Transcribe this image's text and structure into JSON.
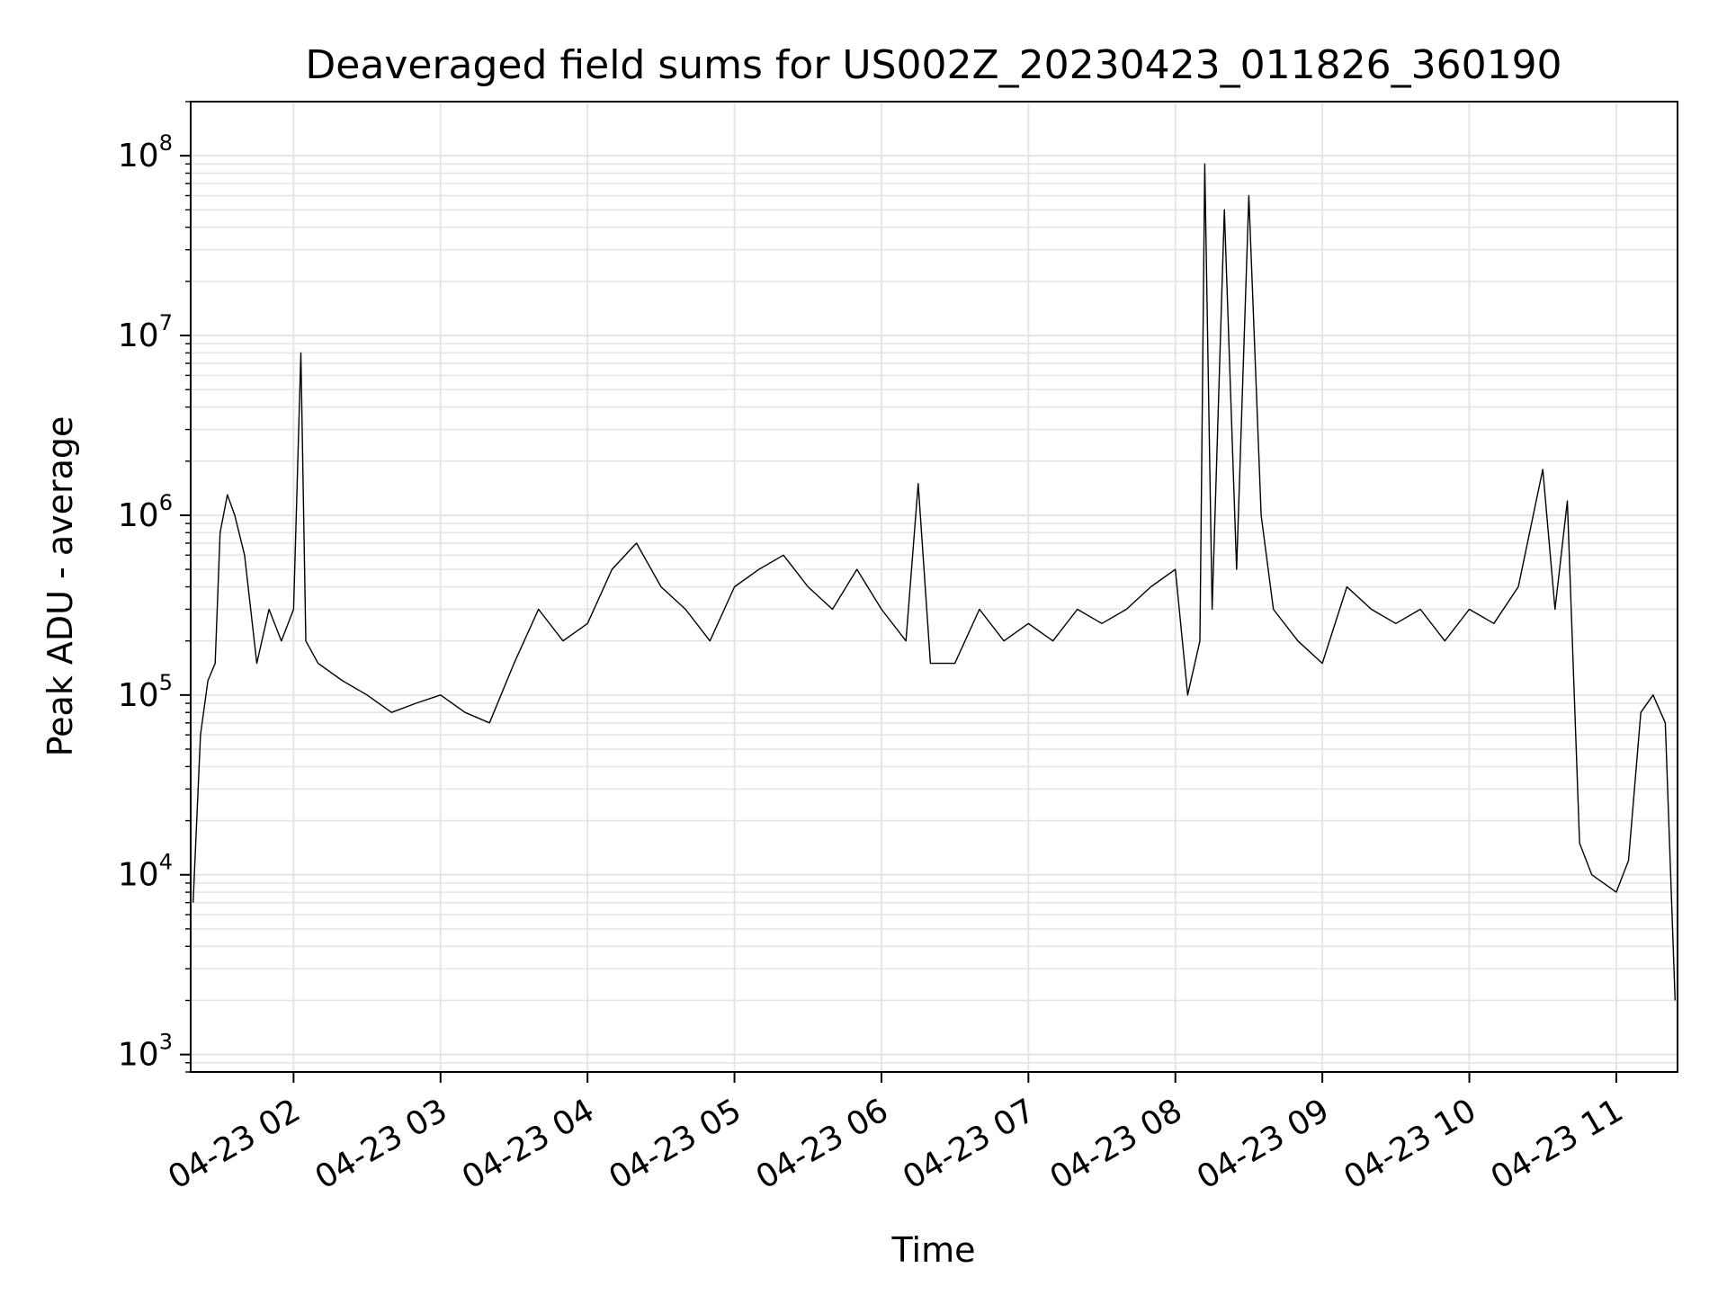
{
  "chart_data": {
    "type": "line",
    "title": "Deaveraged field sums for US002Z_20230423_011826_360190",
    "xlabel": "Time",
    "ylabel": "Peak ADU - average",
    "yscale": "log",
    "grid": true,
    "line_color": "#000000",
    "grid_color": "#e5e5e5",
    "xlim": [
      "04-23 01:18:00",
      "04-23 11:25:00"
    ],
    "ylim": [
      800,
      200000000
    ],
    "x_ticks": [
      {
        "value": "04-23 02:00",
        "label": "04-23 02"
      },
      {
        "value": "04-23 03:00",
        "label": "04-23 03"
      },
      {
        "value": "04-23 04:00",
        "label": "04-23 04"
      },
      {
        "value": "04-23 05:00",
        "label": "04-23 05"
      },
      {
        "value": "04-23 06:00",
        "label": "04-23 06"
      },
      {
        "value": "04-23 07:00",
        "label": "04-23 07"
      },
      {
        "value": "04-23 08:00",
        "label": "04-23 08"
      },
      {
        "value": "04-23 09:00",
        "label": "04-23 09"
      },
      {
        "value": "04-23 10:00",
        "label": "04-23 10"
      },
      {
        "value": "04-23 11:00",
        "label": "04-23 11"
      }
    ],
    "y_ticks": [
      {
        "value": 1000,
        "base": "10",
        "exp": "3"
      },
      {
        "value": 10000,
        "base": "10",
        "exp": "4"
      },
      {
        "value": 100000,
        "base": "10",
        "exp": "5"
      },
      {
        "value": 1000000,
        "base": "10",
        "exp": "6"
      },
      {
        "value": 10000000,
        "base": "10",
        "exp": "7"
      },
      {
        "value": 100000000,
        "base": "10",
        "exp": "8"
      }
    ],
    "series": [
      {
        "x": [
          "04-23 01:19",
          "04-23 01:22",
          "04-23 01:25",
          "04-23 01:28",
          "04-23 01:30",
          "04-23 01:33",
          "04-23 01:36",
          "04-23 01:40",
          "04-23 01:45",
          "04-23 01:50",
          "04-23 01:55",
          "04-23 02:00",
          "04-23 02:03",
          "04-23 02:05",
          "04-23 02:10",
          "04-23 02:20",
          "04-23 02:30",
          "04-23 02:40",
          "04-23 02:50",
          "04-23 03:00",
          "04-23 03:10",
          "04-23 03:20",
          "04-23 03:30",
          "04-23 03:40",
          "04-23 03:50",
          "04-23 04:00",
          "04-23 04:10",
          "04-23 04:20",
          "04-23 04:30",
          "04-23 04:40",
          "04-23 04:50",
          "04-23 05:00",
          "04-23 05:10",
          "04-23 05:20",
          "04-23 05:30",
          "04-23 05:40",
          "04-23 05:50",
          "04-23 06:00",
          "04-23 06:10",
          "04-23 06:15",
          "04-23 06:20",
          "04-23 06:30",
          "04-23 06:40",
          "04-23 06:50",
          "04-23 07:00",
          "04-23 07:10",
          "04-23 07:20",
          "04-23 07:30",
          "04-23 07:40",
          "04-23 07:50",
          "04-23 08:00",
          "04-23 08:05",
          "04-23 08:10",
          "04-23 08:12",
          "04-23 08:15",
          "04-23 08:20",
          "04-23 08:25",
          "04-23 08:30",
          "04-23 08:35",
          "04-23 08:40",
          "04-23 08:50",
          "04-23 09:00",
          "04-23 09:10",
          "04-23 09:20",
          "04-23 09:30",
          "04-23 09:40",
          "04-23 09:50",
          "04-23 10:00",
          "04-23 10:10",
          "04-23 10:20",
          "04-23 10:30",
          "04-23 10:35",
          "04-23 10:40",
          "04-23 10:45",
          "04-23 10:50",
          "04-23 11:00",
          "04-23 11:05",
          "04-23 11:10",
          "04-23 11:15",
          "04-23 11:20",
          "04-23 11:24"
        ],
        "y": [
          7000,
          60000,
          120000,
          150000,
          800000,
          1300000,
          1000000,
          600000,
          150000,
          300000,
          200000,
          300000,
          8000000,
          200000,
          150000,
          120000,
          100000,
          80000,
          90000,
          100000,
          80000,
          70000,
          150000,
          300000,
          200000,
          250000,
          500000,
          700000,
          400000,
          300000,
          200000,
          400000,
          500000,
          600000,
          400000,
          300000,
          500000,
          300000,
          200000,
          1500000,
          150000,
          150000,
          300000,
          200000,
          250000,
          200000,
          300000,
          250000,
          300000,
          400000,
          500000,
          100000,
          200000,
          90000000,
          300000,
          50000000,
          500000,
          60000000,
          1000000,
          300000,
          200000,
          150000,
          400000,
          300000,
          250000,
          300000,
          200000,
          300000,
          250000,
          400000,
          1800000,
          300000,
          1200000,
          15000,
          10000,
          8000,
          12000,
          80000,
          100000,
          70000,
          2000
        ]
      }
    ]
  }
}
